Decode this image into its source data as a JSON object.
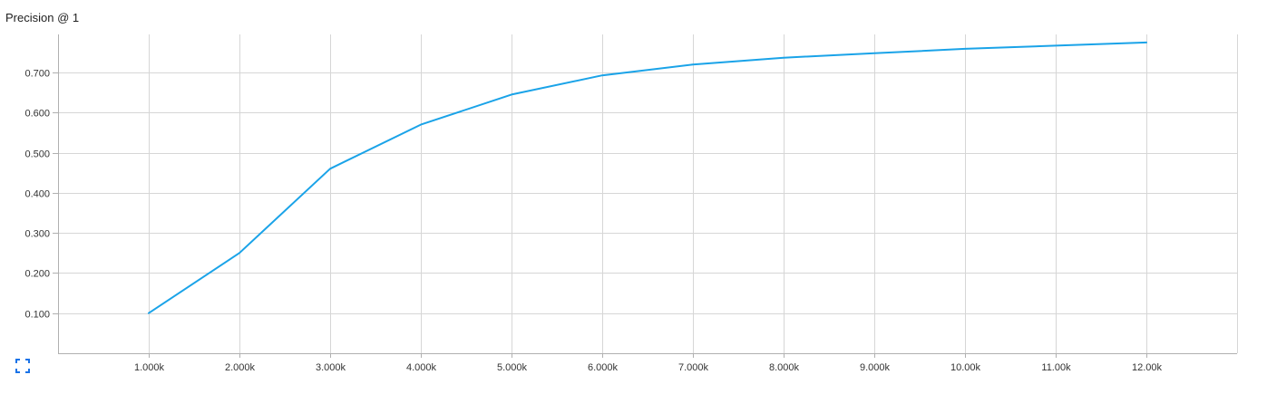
{
  "chart_data": {
    "type": "line",
    "title": "Precision @ 1",
    "xlabel": "",
    "ylabel": "",
    "x": [
      1000,
      2000,
      3000,
      4000,
      5000,
      6000,
      7000,
      8000,
      9000,
      10000,
      11000,
      12000
    ],
    "x_tick_labels": [
      "1.000k",
      "2.000k",
      "3.000k",
      "4.000k",
      "5.000k",
      "6.000k",
      "7.000k",
      "8.000k",
      "9.000k",
      "10.00k",
      "11.00k",
      "12.00k"
    ],
    "y_tick_values": [
      0.1,
      0.2,
      0.3,
      0.4,
      0.5,
      0.6,
      0.7
    ],
    "y_tick_labels": [
      "0.100",
      "0.200",
      "0.300",
      "0.400",
      "0.500",
      "0.600",
      "0.700"
    ],
    "series": [
      {
        "values": [
          0.1,
          0.25,
          0.46,
          0.57,
          0.645,
          0.693,
          0.72,
          0.737,
          0.748,
          0.759,
          0.767,
          0.775
        ],
        "color": "#1aa3e8"
      }
    ],
    "xlim": [
      0,
      13000
    ],
    "ylim": [
      0,
      0.795
    ],
    "grid": true,
    "legend": "none"
  },
  "controls": {
    "expand_icon": "expand-icon",
    "accent_color": "#1a73e8"
  }
}
